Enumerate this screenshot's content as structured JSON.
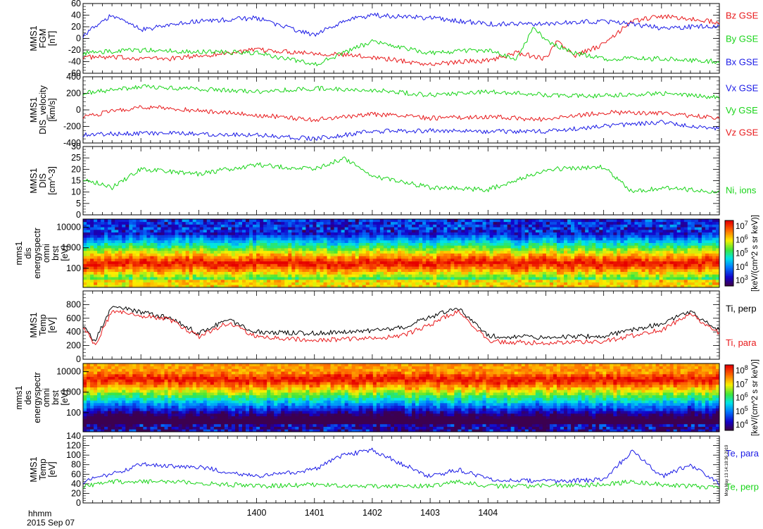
{
  "figure": {
    "time_label": "hhmm",
    "date_label": "2015 Sep 07",
    "time_ticks": [
      "1400",
      "1401",
      "1402",
      "1403",
      "1404"
    ],
    "stamp": "Mon May 13 14:18:36 2019"
  },
  "chart_data": [
    {
      "type": "line",
      "ylabel": [
        "MMS1",
        "FGM",
        "[nT]"
      ],
      "ylim": [
        -60,
        60
      ],
      "yticks": [
        "-60",
        "-40",
        "-20",
        "0",
        "20",
        "40",
        "60"
      ],
      "x_range_min": [
        13.97,
        14.08
      ],
      "series": [
        {
          "name": "Bz GSE",
          "color": "#e8191b",
          "x": [
            13.97,
            13.985,
            14.0,
            14.01,
            14.02,
            14.03,
            14.035,
            14.04,
            14.045,
            14.05,
            14.052,
            14.055,
            14.06,
            14.065,
            14.07,
            14.08
          ],
          "values": [
            -32,
            -35,
            -20,
            -25,
            -32,
            -45,
            -40,
            -38,
            -25,
            -35,
            -5,
            -30,
            -10,
            30,
            38,
            28
          ]
        },
        {
          "name": "By GSE",
          "color": "#19d419",
          "x": [
            13.97,
            13.98,
            14.0,
            14.01,
            14.02,
            14.03,
            14.04,
            14.045,
            14.048,
            14.05,
            14.055,
            14.06,
            14.07,
            14.08
          ],
          "values": [
            -25,
            -20,
            -25,
            -45,
            -5,
            -25,
            -20,
            -35,
            20,
            -5,
            -25,
            -35,
            -35,
            -40
          ]
        },
        {
          "name": "Bx GSE",
          "color": "#1a1ae6",
          "x": [
            13.97,
            13.975,
            13.98,
            13.99,
            14.0,
            14.01,
            14.015,
            14.02,
            14.03,
            14.04,
            14.05,
            14.06,
            14.07,
            14.08
          ],
          "values": [
            5,
            40,
            15,
            30,
            35,
            5,
            30,
            40,
            35,
            25,
            25,
            30,
            18,
            22
          ]
        }
      ]
    },
    {
      "type": "line",
      "ylabel": [
        "MMS1",
        "DIS_velocity",
        "[km/s]"
      ],
      "ylim": [
        -400,
        400
      ],
      "yticks": [
        "-400",
        "-200",
        "0",
        "200",
        "400"
      ],
      "series": [
        {
          "name": "Vx GSE",
          "color": "#1a1ae6",
          "x": [
            13.97,
            13.98,
            14.0,
            14.01,
            14.02,
            14.03,
            14.04,
            14.05,
            14.06,
            14.07,
            14.08
          ],
          "values": [
            -300,
            -280,
            -300,
            -350,
            -260,
            -250,
            -260,
            -260,
            -200,
            -150,
            -230
          ]
        },
        {
          "name": "Vy GSE",
          "color": "#19d419",
          "x": [
            13.97,
            13.98,
            14.0,
            14.01,
            14.02,
            14.03,
            14.04,
            14.05,
            14.06,
            14.07,
            14.08
          ],
          "values": [
            200,
            280,
            220,
            260,
            240,
            180,
            220,
            180,
            170,
            200,
            150
          ]
        },
        {
          "name": "Vz GSE",
          "color": "#e8191b",
          "x": [
            13.97,
            13.98,
            14.0,
            14.01,
            14.02,
            14.03,
            14.04,
            14.05,
            14.06,
            14.07,
            14.08
          ],
          "values": [
            -80,
            40,
            -60,
            -120,
            -50,
            -100,
            -80,
            -120,
            -30,
            -40,
            -100
          ]
        }
      ]
    },
    {
      "type": "line",
      "ylabel": [
        "MMS1",
        "DIS",
        "[cm^-3]"
      ],
      "ylim": [
        0,
        30
      ],
      "yticks": [
        "0",
        "5",
        "10",
        "15",
        "20",
        "25",
        "30"
      ],
      "series": [
        {
          "name": "Ni, ions",
          "color": "#19d419",
          "x": [
            13.97,
            13.975,
            13.98,
            13.99,
            14.0,
            14.01,
            14.015,
            14.02,
            14.03,
            14.04,
            14.05,
            14.06,
            14.065,
            14.07,
            14.08
          ],
          "values": [
            16,
            12,
            20,
            18,
            22,
            20,
            25,
            17,
            12,
            11,
            20,
            21,
            10,
            12,
            10
          ]
        }
      ]
    },
    {
      "type": "heatmap",
      "ylabel": [
        "mms1",
        "dis",
        "energyspectr",
        "omni",
        "brst",
        "[eV]"
      ],
      "yticks": [
        "100",
        "1000",
        "10000"
      ],
      "colorbar": {
        "label": "[keV/(cm^2 s sr keV)]",
        "ticks": [
          "10^3",
          "10^4",
          "10^5",
          "10^6",
          "10^7"
        ]
      }
    },
    {
      "type": "line",
      "ylabel": [
        "MMS1",
        "Temp",
        "[eV]"
      ],
      "ylim": [
        0,
        1000
      ],
      "yticks": [
        "0",
        "200",
        "400",
        "600",
        "800"
      ],
      "series": [
        {
          "name": "Ti, perp",
          "color": "#000000",
          "x": [
            13.97,
            13.972,
            13.975,
            13.985,
            13.99,
            13.995,
            14.0,
            14.01,
            14.02,
            14.025,
            14.03,
            14.035,
            14.04,
            14.05,
            14.06,
            14.07,
            14.075,
            14.08
          ],
          "values": [
            500,
            250,
            780,
            600,
            380,
            580,
            400,
            380,
            420,
            460,
            620,
            750,
            340,
            320,
            340,
            520,
            700,
            420
          ]
        },
        {
          "name": "Ti, para",
          "color": "#e8191b",
          "x": [
            13.97,
            13.972,
            13.975,
            13.985,
            13.99,
            13.995,
            14.0,
            14.01,
            14.02,
            14.025,
            14.03,
            14.035,
            14.04,
            14.05,
            14.06,
            14.07,
            14.075,
            14.08
          ],
          "values": [
            480,
            200,
            700,
            580,
            330,
            530,
            330,
            280,
            300,
            340,
            500,
            720,
            260,
            240,
            260,
            430,
            650,
            380
          ]
        }
      ]
    },
    {
      "type": "heatmap",
      "ylabel": [
        "mms1",
        "des",
        "energyspectr",
        "omni",
        "brst",
        "[eV]"
      ],
      "yticks": [
        "100",
        "1000",
        "10000"
      ],
      "colorbar": {
        "label": "[keV/(cm^2 s sr keV)]",
        "ticks": [
          "10^4",
          "10^5",
          "10^6",
          "10^7",
          "10^8"
        ]
      }
    },
    {
      "type": "line",
      "ylabel": [
        "MMS1",
        "Temp",
        "[eV]"
      ],
      "ylim": [
        0,
        140
      ],
      "yticks": [
        "0",
        "20",
        "40",
        "60",
        "80",
        "100",
        "120",
        "140"
      ],
      "series": [
        {
          "name": "Te, para",
          "color": "#1a1ae6",
          "x": [
            13.97,
            13.975,
            13.98,
            13.99,
            14.0,
            14.01,
            14.015,
            14.02,
            14.03,
            14.035,
            14.04,
            14.05,
            14.06,
            14.065,
            14.07,
            14.075,
            14.08
          ],
          "values": [
            45,
            60,
            80,
            75,
            55,
            70,
            100,
            110,
            55,
            70,
            50,
            45,
            48,
            110,
            55,
            80,
            40
          ]
        },
        {
          "name": "Te, perp",
          "color": "#19d419",
          "x": [
            13.97,
            13.975,
            13.98,
            13.99,
            14.0,
            14.01,
            14.02,
            14.03,
            14.035,
            14.04,
            14.05,
            14.06,
            14.065,
            14.07,
            14.08
          ],
          "values": [
            35,
            45,
            45,
            42,
            35,
            38,
            35,
            35,
            45,
            35,
            36,
            38,
            45,
            38,
            32
          ]
        }
      ]
    }
  ]
}
